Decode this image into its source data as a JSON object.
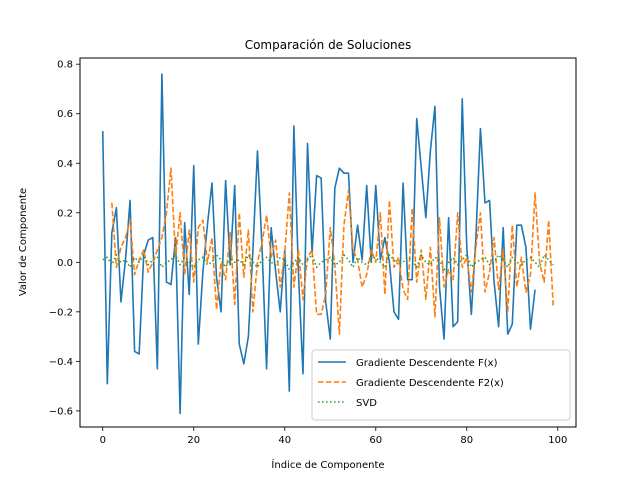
{
  "chart_data": {
    "type": "line",
    "title": "Comparación de Soluciones",
    "xlabel": "Índice de Componente",
    "ylabel": "Valor de Componente",
    "xlim": [
      -5,
      104
    ],
    "ylim": [
      -0.665,
      0.825
    ],
    "xticks": [
      0,
      20,
      40,
      60,
      80,
      100
    ],
    "yticks": [
      -0.6,
      -0.4,
      -0.2,
      0.0,
      0.2,
      0.4,
      0.6,
      0.8
    ],
    "legend_position": "lower-right",
    "series": [
      {
        "name": "Gradiente Descendente F(x)",
        "color": "#1f77b4",
        "style": "solid",
        "values": [
          0.53,
          -0.49,
          0.12,
          0.22,
          -0.16,
          0.01,
          0.25,
          -0.36,
          -0.37,
          0.03,
          0.09,
          0.1,
          -0.43,
          0.76,
          -0.08,
          -0.09,
          0.1,
          -0.61,
          0.16,
          -0.13,
          0.39,
          -0.33,
          -0.04,
          0.15,
          0.32,
          -0.06,
          -0.2,
          0.33,
          -0.01,
          0.31,
          -0.33,
          -0.41,
          -0.3,
          0.05,
          0.45,
          0.06,
          -0.43,
          0.14,
          -0.04,
          -0.2,
          0.05,
          -0.52,
          0.55,
          -0.04,
          -0.45,
          0.48,
          0.04,
          0.35,
          0.34,
          -0.16,
          -0.31,
          0.3,
          0.38,
          0.36,
          0.36,
          0.0,
          0.15,
          0.01,
          0.31,
          0.0,
          0.31,
          0.01,
          0.1,
          0.0,
          -0.2,
          -0.23,
          0.32,
          -0.07,
          -0.07,
          0.58,
          0.38,
          0.18,
          0.45,
          0.63,
          -0.1,
          -0.31,
          0.18,
          -0.26,
          -0.24,
          0.66,
          0.06,
          -0.21,
          0.1,
          0.54,
          0.24,
          0.25,
          -0.08,
          -0.26,
          0.14,
          -0.29,
          -0.25,
          0.15,
          0.15,
          0.06,
          -0.27,
          -0.11
        ],
        "x_start": 0
      },
      {
        "name": "Gradiente Descendente F2(x)",
        "color": "#ff7f0e",
        "style": "dashed",
        "values": [
          0.24,
          -0.02,
          0.06,
          0.1,
          0.17,
          -0.05,
          0.01,
          0.05,
          -0.04,
          0.0,
          0.05,
          0.1,
          0.2,
          0.38,
          0.02,
          0.2,
          -0.05,
          0.13,
          -0.08,
          0.14,
          0.17,
          0.0,
          0.1,
          -0.19,
          0.0,
          -0.07,
          0.12,
          -0.17,
          0.2,
          -0.06,
          0.13,
          -0.2,
          0.0,
          0.08,
          0.19,
          0.02,
          0.09,
          -0.1,
          0.04,
          0.28,
          -0.1,
          0.05,
          -0.15,
          0.02,
          0.05,
          -0.21,
          -0.21,
          -0.13,
          0.14,
          -0.01,
          -0.29,
          0.15,
          0.29,
          0.05,
          0.01,
          -0.1,
          -0.05,
          0.05,
          0.0,
          0.2,
          -0.13,
          0.25,
          -0.02,
          0.02,
          -0.11,
          -0.15,
          0.22,
          -0.08,
          0.05,
          -0.15,
          0.06,
          -0.22,
          0.18,
          -0.1,
          -0.03,
          -0.07,
          0.2,
          -0.02,
          0.02,
          -0.12,
          0.06,
          0.2,
          -0.12,
          -0.04,
          0.1,
          -0.11,
          0.05,
          -0.2,
          0.15,
          -0.1,
          0.02,
          -0.12,
          -0.05,
          0.28,
          0.0,
          -0.08,
          0.17,
          -0.18
        ],
        "x_start": 2
      },
      {
        "name": "SVD",
        "color": "#2ca02c",
        "style": "dotted",
        "values": [
          0.01,
          0.02,
          -0.01,
          0.03,
          0.0,
          0.01,
          -0.02,
          0.02,
          0.0,
          0.03,
          -0.01,
          0.01,
          0.02,
          -0.02,
          0.0,
          0.01,
          0.03,
          -0.01,
          0.02,
          0.0,
          -0.02,
          0.01,
          0.02,
          -0.01,
          0.0,
          0.03,
          0.01,
          -0.02,
          0.02,
          0.0,
          0.01,
          -0.01,
          0.03,
          0.0,
          -0.02,
          0.01,
          0.02,
          0.0,
          -0.01,
          0.02,
          0.01,
          -0.03,
          0.0,
          0.02,
          -0.01,
          0.01,
          0.03,
          -0.02,
          0.0,
          0.01,
          0.02,
          -0.01,
          0.0,
          0.03,
          0.01,
          -0.02,
          0.02,
          0.0,
          -0.01,
          0.01,
          0.02,
          0.0,
          -0.02,
          0.03,
          0.01,
          -0.01,
          0.0,
          0.02,
          0.01,
          -0.02,
          0.03,
          0.0,
          -0.01,
          0.02,
          0.01,
          -0.03,
          0.0,
          0.02,
          -0.01,
          0.01,
          0.03,
          -0.02,
          0.0,
          0.01,
          0.02,
          -0.01,
          0.0,
          0.03,
          0.01,
          -0.02,
          0.02,
          0.0,
          -0.01,
          0.01,
          0.02,
          0.0,
          -0.02,
          0.03,
          0.01,
          -0.01
        ],
        "x_start": 0
      }
    ]
  }
}
